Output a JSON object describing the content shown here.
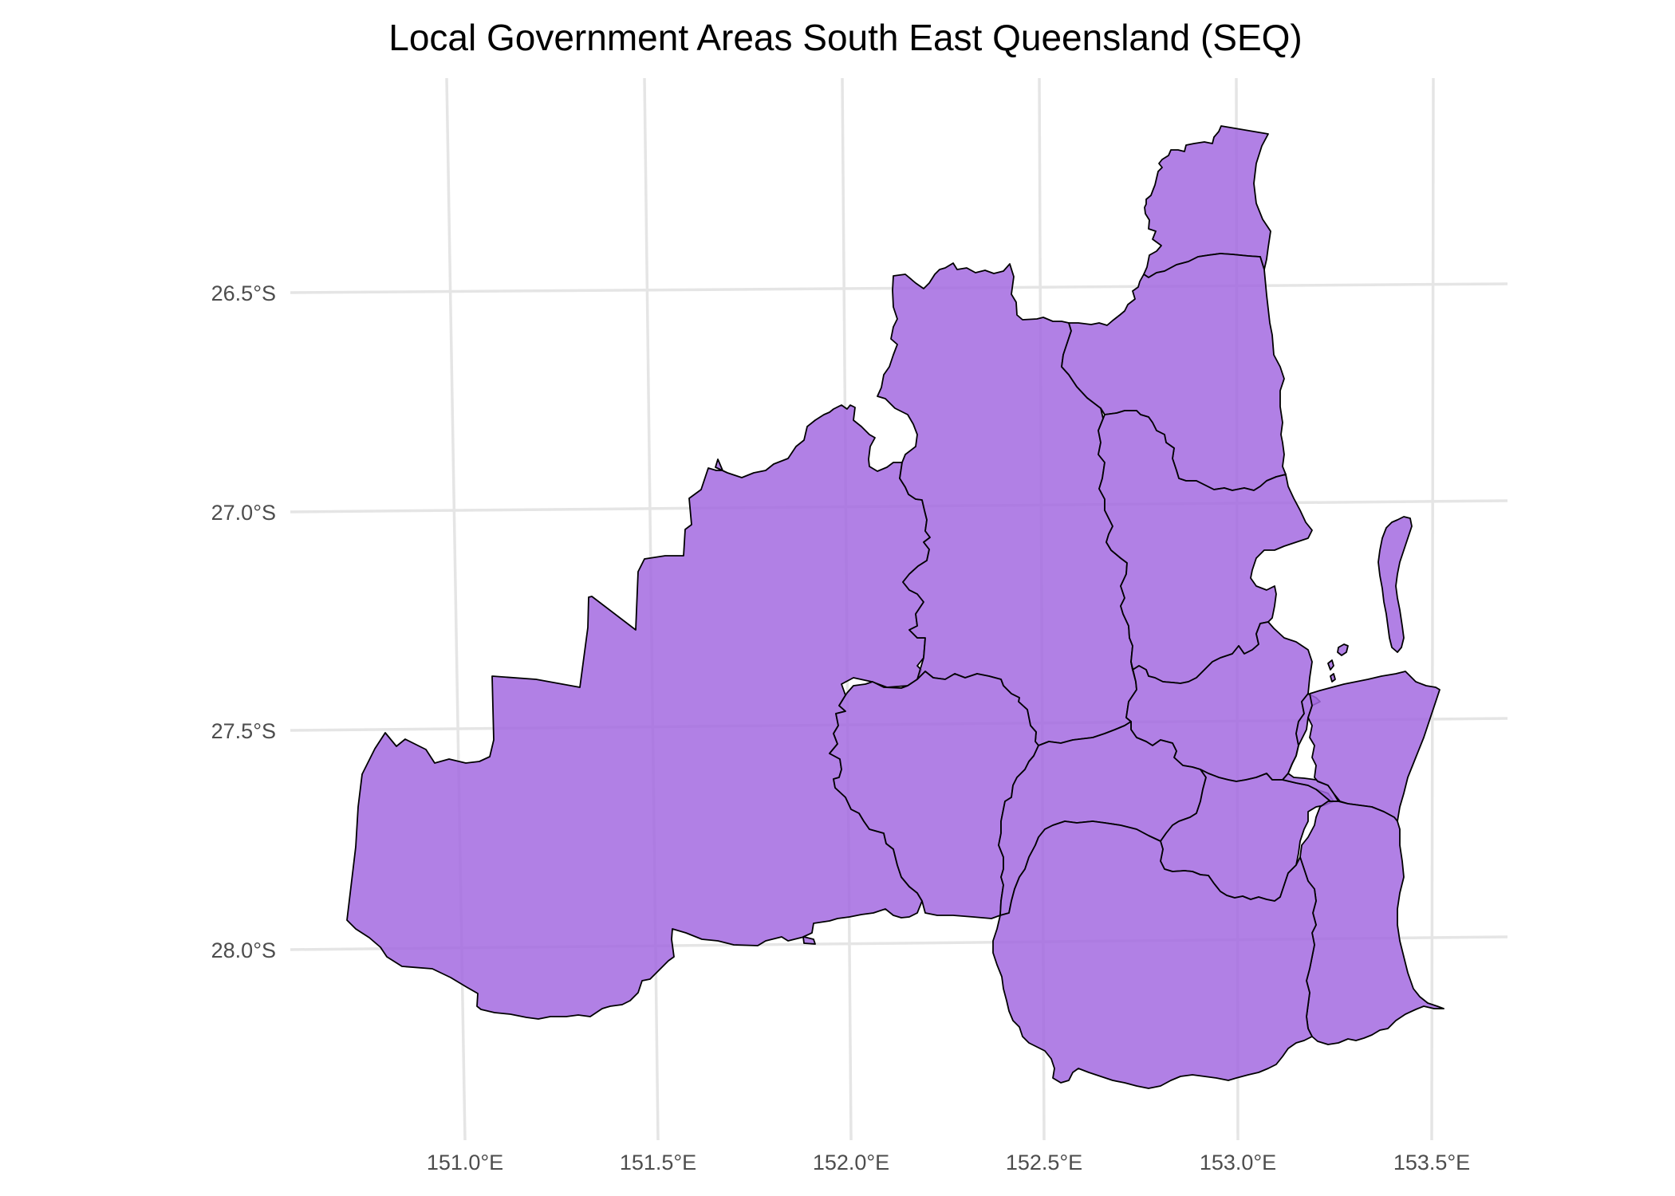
{
  "title": "Local Government Areas South East Queensland (SEQ)",
  "fill_color": "#a36ae0",
  "border_color": "#000000",
  "grid_color": "#e5e5e5",
  "x_axis_ticks": [
    "151.0°E",
    "151.5°E",
    "152.0°E",
    "152.5°E",
    "153.0°E",
    "153.5°E"
  ],
  "y_axis_ticks": [
    "26.5°S",
    "27.0°S",
    "27.5°S",
    "28.0°S"
  ],
  "grid": true,
  "legend": "none"
}
